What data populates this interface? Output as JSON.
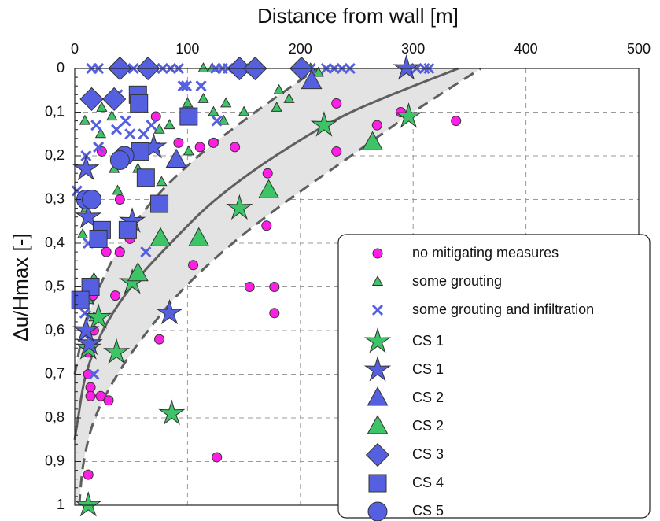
{
  "chart_data": {
    "type": "scatter",
    "x_label": "Distance from wall [m]",
    "y_label": "Δu/Hmax [-]",
    "xlim": [
      0,
      500
    ],
    "xticks": [
      0,
      100,
      200,
      300,
      400,
      500
    ],
    "ylim": [
      1,
      0
    ],
    "yticks": [
      0,
      {
        "value": 0.1,
        "label": "0,1"
      },
      {
        "value": 0.2,
        "label": "0,2"
      },
      {
        "value": 0.3,
        "label": "0,3"
      },
      {
        "value": 0.4,
        "label": "0,4"
      },
      {
        "value": 0.5,
        "label": "0,5"
      },
      {
        "value": 0.6,
        "label": "0,6"
      },
      {
        "value": 0.7,
        "label": "0,7"
      },
      {
        "value": 0.8,
        "label": "0,8"
      },
      {
        "value": 0.9,
        "label": "0,9"
      },
      1
    ],
    "grid": true,
    "legend": "lower right",
    "series": [
      {
        "name": "no mitigating measures",
        "color": "#ff1ee6",
        "marker": "circle",
        "size": 6,
        "x": [
          338,
          289,
          268,
          232,
          232,
          171,
          170,
          177,
          155,
          177,
          126,
          105,
          75,
          92,
          111,
          123,
          142,
          72,
          40,
          49,
          40,
          28,
          36,
          16,
          12,
          14,
          14,
          23,
          30,
          12,
          24,
          17,
          12
        ],
        "y": [
          0.12,
          0.1,
          0.13,
          0.19,
          0.08,
          0.24,
          0.36,
          0.5,
          0.5,
          0.56,
          0.89,
          0.45,
          0.62,
          0.17,
          0.18,
          0.17,
          0.18,
          0.11,
          0.3,
          0.39,
          0.42,
          0.42,
          0.52,
          0.52,
          0.7,
          0.73,
          0.75,
          0.75,
          0.76,
          0.93,
          0.19,
          0.6,
          0.65
        ]
      },
      {
        "name": "some grouting",
        "color": "#3cc466",
        "marker": "triangle",
        "size": 6,
        "x": [
          123,
          134,
          114,
          132,
          181,
          190,
          179,
          150,
          209,
          216,
          114,
          122,
          100,
          84,
          75,
          58,
          56,
          38,
          35,
          9,
          10,
          7,
          17,
          12,
          17,
          77,
          66,
          23,
          33,
          24,
          101,
          40
        ],
        "y": [
          0.1,
          0.08,
          0.07,
          0.12,
          0.05,
          0.07,
          0.09,
          0.1,
          0,
          0.01,
          0,
          0,
          0.08,
          0.13,
          0.14,
          0.19,
          0.23,
          0.28,
          0.23,
          0.12,
          0.32,
          0.38,
          0.48,
          0.53,
          0.57,
          0.26,
          0.26,
          0.15,
          0.11,
          0.09,
          0.19,
          0.2
        ]
      },
      {
        "name": "some grouting and infiltration",
        "color": "#5560e0",
        "marker": "cross",
        "size": 6,
        "x": [
          15,
          21,
          38,
          52,
          66,
          71,
          78,
          85,
          92,
          125,
          131,
          136,
          143,
          150,
          157,
          199,
          209,
          223,
          230,
          237,
          244,
          296,
          303,
          310,
          314,
          99,
          96,
          126,
          112,
          19,
          21,
          10,
          37,
          45,
          49,
          68,
          71,
          61,
          38,
          63,
          17,
          9,
          12,
          2,
          7,
          9
        ],
        "y": [
          0,
          0,
          0,
          0,
          0,
          0,
          0,
          0,
          0,
          0,
          0,
          0,
          0,
          0,
          0,
          0,
          0,
          0,
          0,
          0,
          0,
          0,
          0,
          0,
          0,
          0.04,
          0.04,
          0.12,
          0.04,
          0.13,
          0.18,
          0.2,
          0.14,
          0.12,
          0.15,
          0.13,
          0.18,
          0.15,
          0.06,
          0.42,
          0.7,
          0.56,
          0.4,
          0.28,
          0.53,
          0.61
        ]
      },
      {
        "name": "CS 1",
        "color": "#3cc466",
        "marker": "star",
        "size": 13,
        "x": [
          296,
          221,
          146,
          86,
          37,
          21,
          51,
          12,
          12
        ],
        "y": [
          0.11,
          0.13,
          0.32,
          0.79,
          0.65,
          0.57,
          0.49,
          0.64,
          1
        ]
      },
      {
        "name": "CS 1",
        "color": "#5560e0",
        "marker": "star",
        "size": 13,
        "x": [
          294,
          84,
          13,
          10,
          12,
          70,
          10,
          51
        ],
        "y": [
          0,
          0.56,
          0.63,
          0.23,
          0.34,
          0.18,
          0.6,
          0.35
        ]
      },
      {
        "name": "CS 2",
        "color": "#5560e0",
        "marker": "triangle",
        "size": 12,
        "x": [
          210,
          90
        ],
        "y": [
          0.03,
          0.21
        ]
      },
      {
        "name": "CS 2",
        "color": "#3cc466",
        "marker": "triangle",
        "size": 12,
        "x": [
          264,
          172,
          110,
          76,
          56
        ],
        "y": [
          0.17,
          0.28,
          0.39,
          0.39,
          0.47
        ]
      },
      {
        "name": "CS 3",
        "color": "#5560e0",
        "marker": "diamond",
        "size": 12,
        "x": [
          40,
          65,
          146,
          160,
          201,
          15,
          35
        ],
        "y": [
          0,
          0,
          0,
          0,
          0,
          0.07,
          0.07
        ]
      },
      {
        "name": "CS 4",
        "color": "#5560e0",
        "marker": "square",
        "size": 11,
        "x": [
          56,
          57,
          101,
          63,
          75,
          47,
          24,
          21,
          14,
          5,
          58
        ],
        "y": [
          0.06,
          0.08,
          0.11,
          0.25,
          0.31,
          0.37,
          0.37,
          0.39,
          0.5,
          0.53,
          0.19
        ]
      },
      {
        "name": "CS 5",
        "color": "#5560e0",
        "marker": "circle",
        "size": 12,
        "x": [
          44,
          40,
          10,
          15
        ],
        "y": [
          0.2,
          0.21,
          0.3,
          0.3
        ]
      },
      {
        "line_style": "dashed",
        "color": "#5f5f5f",
        "x": [
          4,
          8,
          18,
          38,
          65,
          98,
          140,
          190,
          245,
          300,
          360
        ],
        "y": [
          1,
          0.9,
          0.8,
          0.7,
          0.6,
          0.5,
          0.4,
          0.3,
          0.2,
          0.1,
          0
        ]
      },
      {
        "line_style": "dashed",
        "color": "#5f5f5f",
        "x": [
          0,
          8,
          22,
          42,
          70,
          110,
          160,
          215
        ],
        "y": [
          0.7,
          0.6,
          0.5,
          0.4,
          0.3,
          0.2,
          0.1,
          0
        ]
      },
      {
        "line_style": "solid",
        "color": "#5f5f5f",
        "x": [
          0,
          3,
          10,
          25,
          50,
          85,
          125,
          178,
          245,
          340
        ],
        "y": [
          0.85,
          0.8,
          0.7,
          0.6,
          0.5,
          0.4,
          0.3,
          0.2,
          0.1,
          0
        ]
      }
    ]
  }
}
